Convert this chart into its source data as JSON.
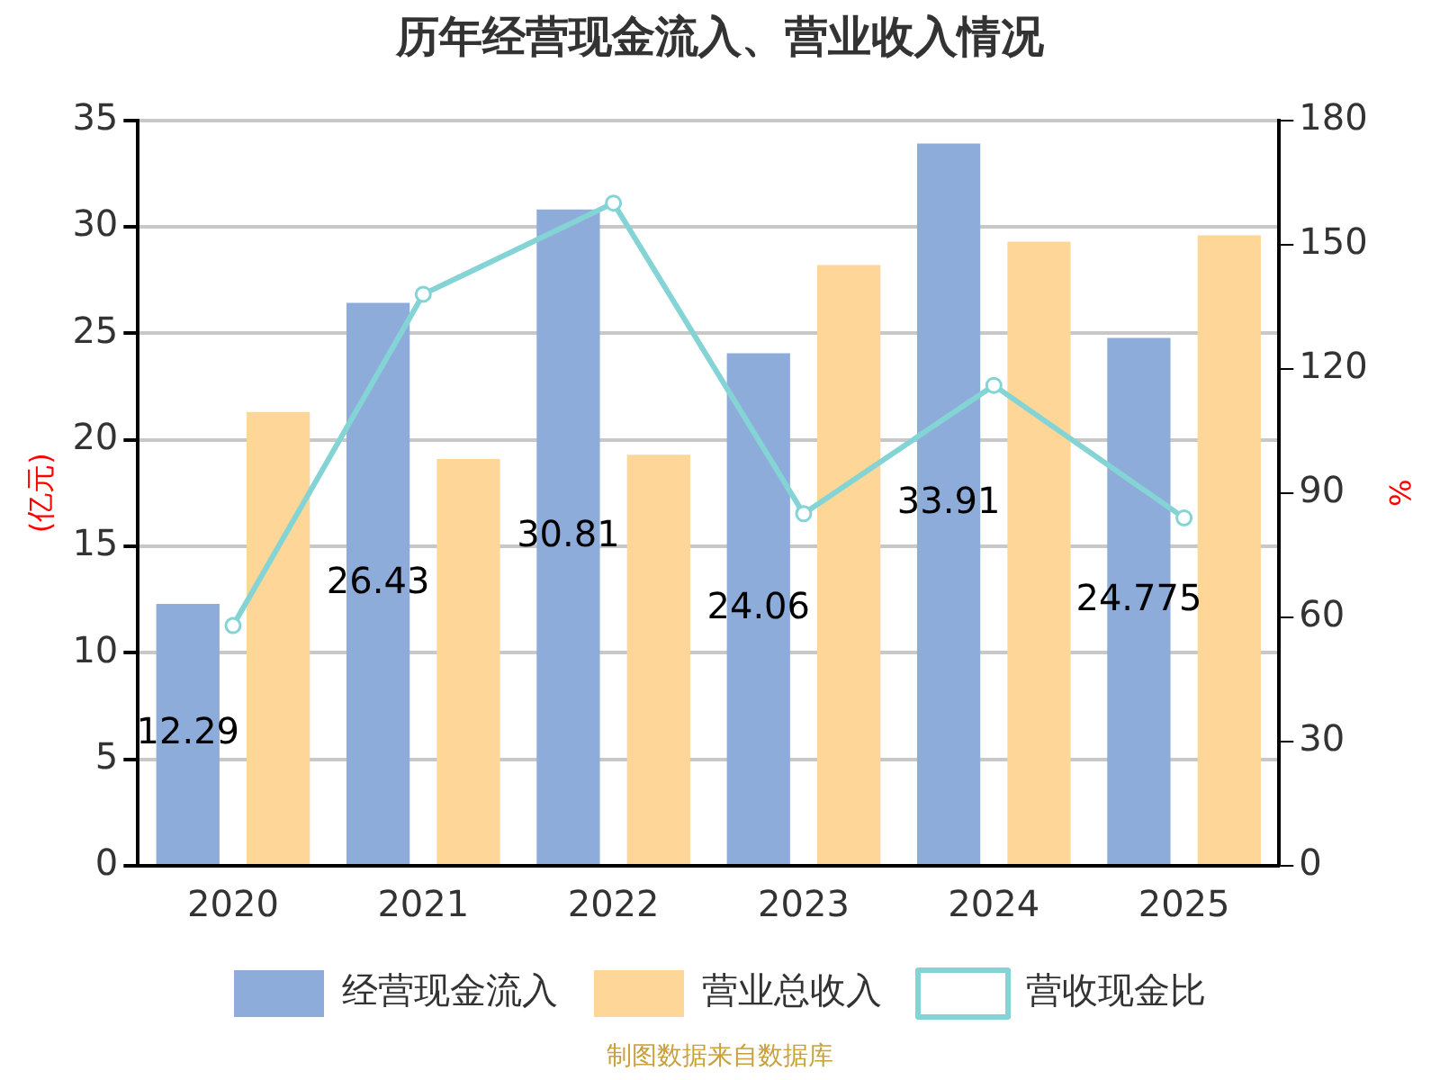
{
  "chart_data": {
    "type": "bar",
    "title": "历年经营现金流入、营业收入情况",
    "ylabel": "(亿元)",
    "y2label": "%",
    "categories": [
      "2020",
      "2021",
      "2022",
      "2023",
      "2024",
      "2025"
    ],
    "series": [
      {
        "name": "经营现金流入",
        "color": "#8eacd9",
        "values": [
          12.29,
          26.43,
          30.81,
          24.06,
          33.91,
          24.775
        ],
        "value_labels": [
          "12.29",
          "26.43",
          "30.81",
          "24.06",
          "33.91",
          "24.775"
        ]
      },
      {
        "name": "营业总收入",
        "color": "#fed798",
        "values": [
          21.3,
          19.1,
          19.3,
          28.2,
          29.3,
          29.6
        ]
      },
      {
        "name": "营收现金比",
        "type": "line",
        "axis": "y2",
        "color": "#84d4d5",
        "marker": "circle",
        "values": [
          58,
          138,
          160,
          85,
          116,
          84
        ]
      }
    ],
    "ylim": [
      0,
      35
    ],
    "yticks": [
      0,
      5,
      10,
      15,
      20,
      25,
      30,
      35
    ],
    "y2lim": [
      0,
      180
    ],
    "y2ticks": [
      0,
      30,
      60,
      90,
      120,
      150,
      180
    ],
    "grid": "y",
    "legend": "bottom",
    "annotations": [
      "制图数据来自数据库"
    ]
  }
}
